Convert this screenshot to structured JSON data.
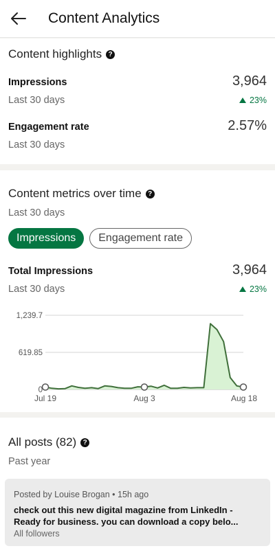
{
  "header": {
    "title": "Content Analytics"
  },
  "highlights": {
    "title": "Content highlights",
    "impressions": {
      "label": "Impressions",
      "value": "3,964",
      "period": "Last 30 days",
      "delta": "23%"
    },
    "engagement": {
      "label": "Engagement rate",
      "value": "2.57%",
      "period": "Last 30 days"
    }
  },
  "metrics": {
    "title": "Content metrics over time",
    "period": "Last 30 days",
    "tabs": [
      "Impressions",
      "Engagement rate"
    ],
    "total_label": "Total Impressions",
    "total_value": "3,964",
    "total_period": "Last 30 days",
    "total_delta": "23%"
  },
  "chart_data": {
    "type": "area",
    "y_ticks": [
      "1,239.7",
      "619.85",
      "0"
    ],
    "x_ticks": [
      "Jul 19",
      "Aug 3",
      "Aug 18"
    ],
    "ylim": [
      0,
      1239.7
    ],
    "x": [
      1,
      2,
      3,
      4,
      5,
      6,
      7,
      8,
      9,
      10,
      11,
      12,
      13,
      14,
      15,
      16,
      17,
      18,
      19,
      20,
      21,
      22,
      23,
      24,
      25,
      26,
      27,
      28,
      29,
      30,
      31
    ],
    "values": [
      40,
      20,
      10,
      15,
      60,
      35,
      20,
      30,
      15,
      60,
      50,
      30,
      20,
      20,
      45,
      40,
      55,
      25,
      70,
      20,
      20,
      35,
      25,
      30,
      30,
      1100,
      1000,
      800,
      200,
      60,
      40
    ],
    "markers": [
      1,
      16,
      31
    ],
    "color": "#057642",
    "fill": "#d9f2d4"
  },
  "posts": {
    "title": "All posts (82)",
    "period": "Past year",
    "items": [
      {
        "meta": "Posted by Louise Brogan • 15h ago",
        "text": "check out this new digital magazine from LinkedIn - Ready for business.  you can download a copy belo...",
        "audience": "All followers"
      }
    ]
  }
}
